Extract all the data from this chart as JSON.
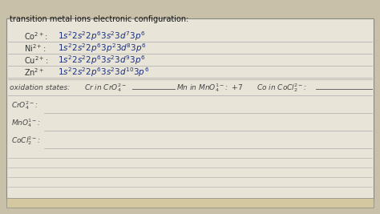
{
  "bg_top": "#c8c0a8",
  "bg_paper": "#e8e4d8",
  "bg_bottom": "#d4c8a0",
  "line_color": "#aaaaaa",
  "border_color": "#888880",
  "title": "transition metal ions electronic configuration:",
  "title_color": "#111111",
  "ink_color": "#1a3080",
  "label_color": "#333333",
  "ox_label_color": "#444444",
  "ion_labels": [
    "Co²⁺:",
    "Ni²⁺:",
    "Cu²⁺:",
    "Zn²⁺"
  ],
  "configs_latex": [
    "$1s^2 2s^2 2p^6 3s^2 3d^7 3p^6$",
    "$1s^2 2s^2 2p^6 3p^2 3d^8 3p^6$",
    "$1s^2 2s^2 2p^6 3s^2 3d^9 3p^6$",
    "$1s^2 2s^2 2p^6 3s^2 3d^{10} 3p^6$"
  ],
  "ion_labels_latex": [
    "Co$^{2+}$:",
    "Ni$^{2+}$:",
    "Cu$^{2+}$:",
    "Zn$^{2+}$"
  ],
  "oxidation_text": "oxidation states:",
  "cr_text": "Cr in CrO$_4^{2-}$",
  "mn_text": "Mn in MnO$_4^{1-}$:  $+7$",
  "co_text": "Co in CoCl$_2^{2-}$:",
  "bottom_labels_latex": [
    "CrO$_4^{2-}$:",
    "MnO$_4^{1-}$:",
    "CoCl$_2^{2-}$:"
  ]
}
